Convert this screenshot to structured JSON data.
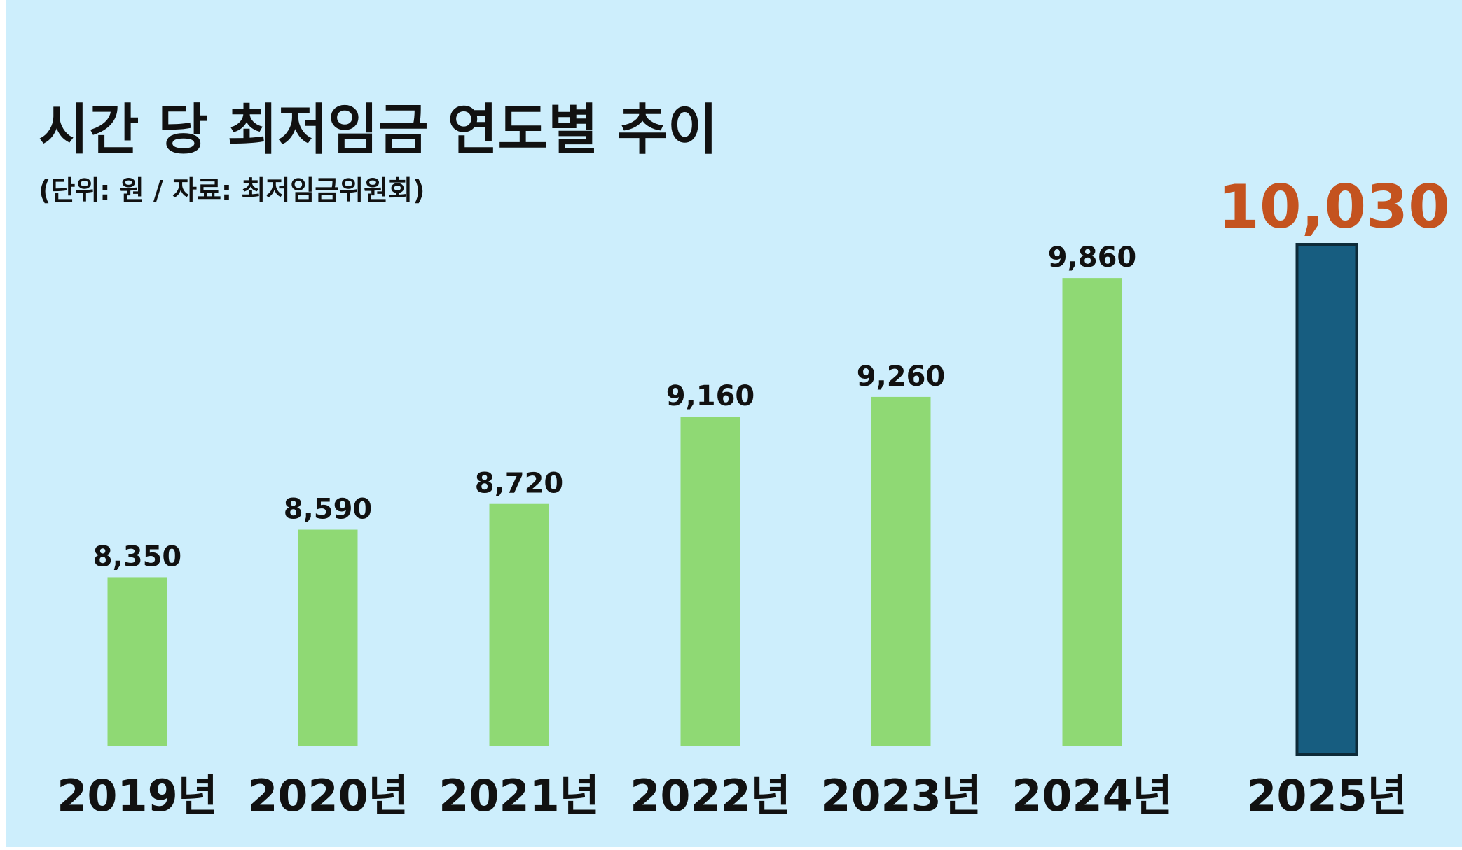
{
  "chart_data": {
    "type": "bar",
    "title": "시간 당 최저임금 연도별 추이",
    "subtitle": "(단위: 원 / 자료: 최저임금위원회)",
    "categories": [
      "2019년",
      "2020년",
      "2021년",
      "2022년",
      "2023년",
      "2024년",
      "2025년"
    ],
    "values": [
      8350,
      8590,
      8720,
      9160,
      9260,
      9860,
      10030
    ],
    "value_labels": [
      "8,350",
      "8,590",
      "8,720",
      "9,160",
      "9,260",
      "9,860",
      "10,030"
    ],
    "colors": [
      "#8fd974",
      "#8fd974",
      "#8fd974",
      "#8fd974",
      "#8fd974",
      "#8fd974",
      "#175d80"
    ],
    "label_colors": [
      "#111111",
      "#111111",
      "#111111",
      "#111111",
      "#111111",
      "#111111",
      "#c4531f"
    ],
    "ylim": [
      7500,
      10500
    ]
  }
}
